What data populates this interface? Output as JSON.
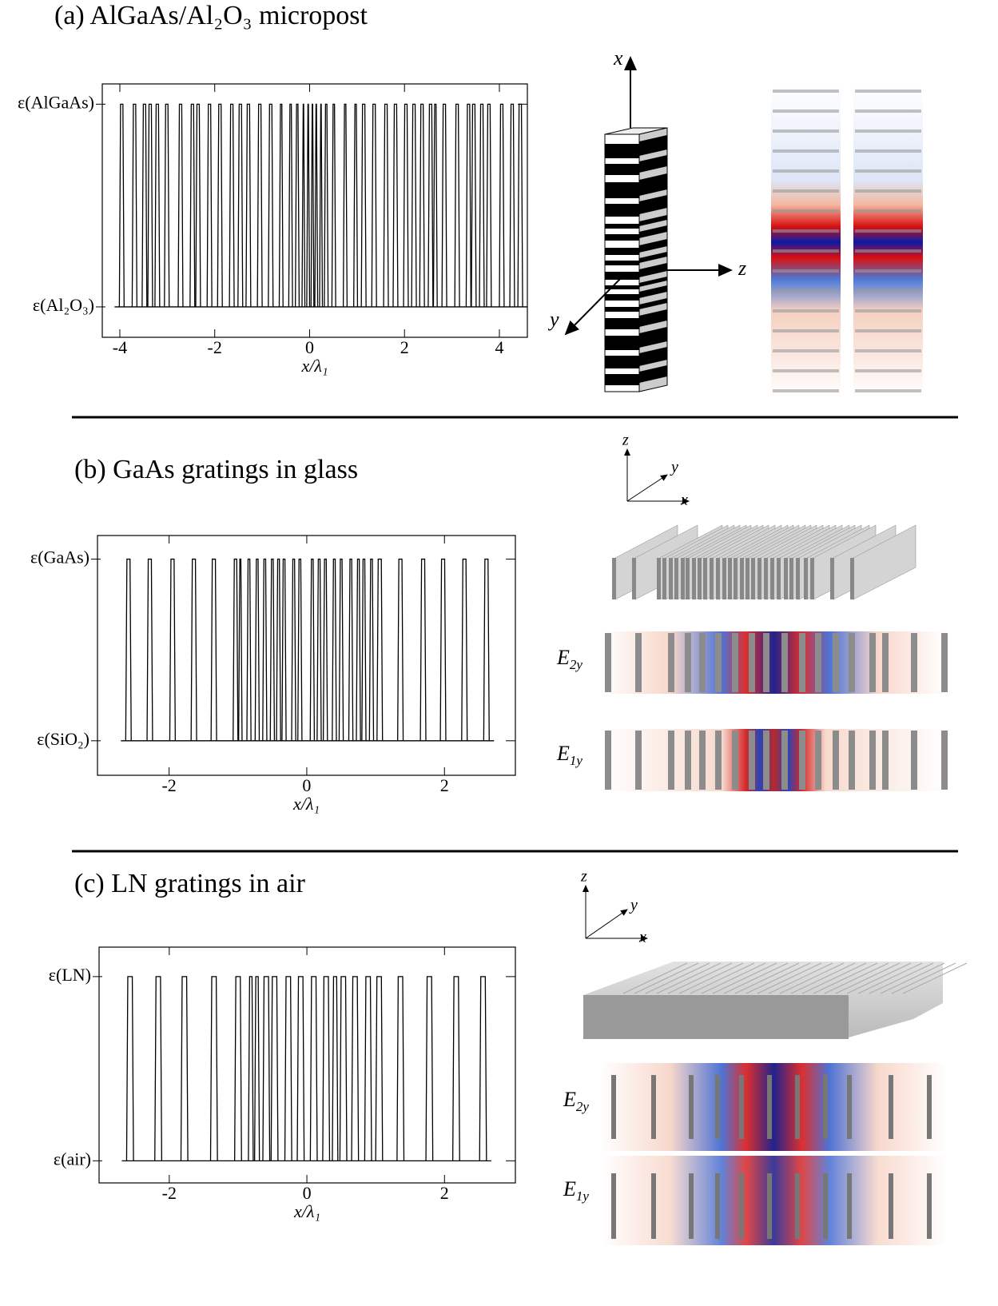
{
  "chart_data": [
    {
      "type": "step",
      "title": "(a) AlGaAs/Al₂O₃ micropost",
      "xlabel": "x/λ₁",
      "xlim": [
        -4.37,
        4.59
      ],
      "xticks": [
        -4,
        -2,
        0,
        2,
        4
      ],
      "ylim": [
        -0.15,
        1.1
      ],
      "yticks": [
        {
          "value": 0,
          "label": "ε(Al₂O₃)"
        },
        {
          "value": 1,
          "label": "ε(AlGaAs)"
        }
      ],
      "pulses": [
        [
          -4.01,
          -3.91
        ],
        [
          -3.74,
          -3.64
        ],
        [
          -3.53,
          -3.43
        ],
        [
          -3.41,
          -3.31
        ],
        [
          -3.26,
          -3.16
        ],
        [
          -3.06,
          -2.96
        ],
        [
          -2.77,
          -2.67
        ],
        [
          -2.52,
          -2.42
        ],
        [
          -2.4,
          -2.3
        ],
        [
          -2.16,
          -2.06
        ],
        [
          -1.94,
          -1.84
        ],
        [
          -1.69,
          -1.59
        ],
        [
          -1.51,
          -1.41
        ],
        [
          -1.34,
          -1.24
        ],
        [
          -1.1,
          -1.0
        ],
        [
          -0.87,
          -0.77
        ],
        [
          -0.64,
          -0.56
        ],
        [
          -0.44,
          -0.36
        ],
        [
          -0.3,
          -0.22
        ],
        [
          -0.16,
          -0.1
        ],
        [
          -0.06,
          0.0
        ],
        [
          0.03,
          0.09
        ],
        [
          0.11,
          0.17
        ],
        [
          0.21,
          0.27
        ],
        [
          0.31,
          0.39
        ],
        [
          0.47,
          0.55
        ],
        [
          0.71,
          0.79
        ],
        [
          0.93,
          1.01
        ],
        [
          1.09,
          1.19
        ],
        [
          1.31,
          1.41
        ],
        [
          1.56,
          1.66
        ],
        [
          1.76,
          1.86
        ],
        [
          1.98,
          2.08
        ],
        [
          2.15,
          2.25
        ],
        [
          2.32,
          2.42
        ],
        [
          2.5,
          2.6
        ],
        [
          2.61,
          2.69
        ],
        [
          2.79,
          2.89
        ],
        [
          3.06,
          3.16
        ],
        [
          3.3,
          3.4
        ],
        [
          3.41,
          3.51
        ],
        [
          3.58,
          3.68
        ],
        [
          3.73,
          3.83
        ],
        [
          4.0,
          4.1
        ],
        [
          4.22,
          4.32
        ],
        [
          4.39,
          4.49
        ]
      ]
    },
    {
      "type": "step",
      "title": "(b) GaAs gratings in glass",
      "xlabel": "x/λ₁",
      "xlim": [
        -3.04,
        3.03
      ],
      "xticks": [
        -2,
        0,
        2
      ],
      "ylim": [
        -0.19,
        1.13
      ],
      "yticks": [
        {
          "value": 0,
          "label": "ε(SiO₂)"
        },
        {
          "value": 1,
          "label": "ε(GaAs)"
        }
      ],
      "pulses": [
        [
          -2.63,
          -2.55
        ],
        [
          -2.32,
          -2.24
        ],
        [
          -1.99,
          -1.91
        ],
        [
          -1.68,
          -1.6
        ],
        [
          -1.39,
          -1.31
        ],
        [
          -1.07,
          -1.0
        ],
        [
          -0.99,
          -0.94
        ],
        [
          -0.87,
          -0.81
        ],
        [
          -0.75,
          -0.69
        ],
        [
          -0.64,
          -0.58
        ],
        [
          -0.53,
          -0.47
        ],
        [
          -0.44,
          -0.38
        ],
        [
          -0.36,
          -0.3
        ],
        [
          -0.22,
          -0.16
        ],
        [
          -0.13,
          -0.07
        ],
        [
          0.05,
          0.11
        ],
        [
          0.15,
          0.21
        ],
        [
          0.24,
          0.3
        ],
        [
          0.37,
          0.43
        ],
        [
          0.47,
          0.53
        ],
        [
          0.61,
          0.67
        ],
        [
          0.72,
          0.78
        ],
        [
          0.8,
          0.86
        ],
        [
          0.91,
          0.97
        ],
        [
          1.02,
          1.1
        ],
        [
          1.32,
          1.4
        ],
        [
          1.65,
          1.73
        ],
        [
          1.94,
          2.02
        ],
        [
          2.25,
          2.33
        ],
        [
          2.57,
          2.65
        ]
      ]
    },
    {
      "type": "step",
      "title": "(c) LN gratings in air",
      "xlabel": "x/λ₁",
      "xlim": [
        -3.02,
        3.03
      ],
      "xticks": [
        -2,
        0,
        2
      ],
      "ylim": [
        -0.12,
        1.16
      ],
      "yticks": [
        {
          "value": 0,
          "label": "ε(air)"
        },
        {
          "value": 1,
          "label": "ε(LN)"
        }
      ],
      "pulses": [
        [
          -2.62,
          -2.52
        ],
        [
          -2.21,
          -2.11
        ],
        [
          -1.83,
          -1.73
        ],
        [
          -1.4,
          -1.3
        ],
        [
          -1.05,
          -0.95
        ],
        [
          -0.85,
          -0.78
        ],
        [
          -0.76,
          -0.69
        ],
        [
          -0.64,
          -0.54
        ],
        [
          -0.52,
          -0.42
        ],
        [
          -0.32,
          -0.22
        ],
        [
          -0.14,
          -0.04
        ],
        [
          0.05,
          0.15
        ],
        [
          0.23,
          0.33
        ],
        [
          0.37,
          0.45
        ],
        [
          0.48,
          0.58
        ],
        [
          0.65,
          0.75
        ],
        [
          0.84,
          0.94
        ],
        [
          1.0,
          1.1
        ],
        [
          1.31,
          1.41
        ],
        [
          1.73,
          1.83
        ],
        [
          2.12,
          2.22
        ],
        [
          2.51,
          2.61
        ]
      ]
    }
  ],
  "illustrations": [
    {
      "axes": [
        "x",
        "y",
        "z"
      ]
    },
    {
      "axes": [
        "z",
        "y",
        "x"
      ],
      "fields": [
        {
          "symbol": "E",
          "subscript": "2y"
        },
        {
          "symbol": "E",
          "subscript": "1y"
        }
      ]
    },
    {
      "axes": [
        "z",
        "y",
        "x"
      ],
      "fields": [
        {
          "symbol": "E",
          "subscript": "2y"
        },
        {
          "symbol": "E",
          "subscript": "1y"
        }
      ]
    }
  ]
}
